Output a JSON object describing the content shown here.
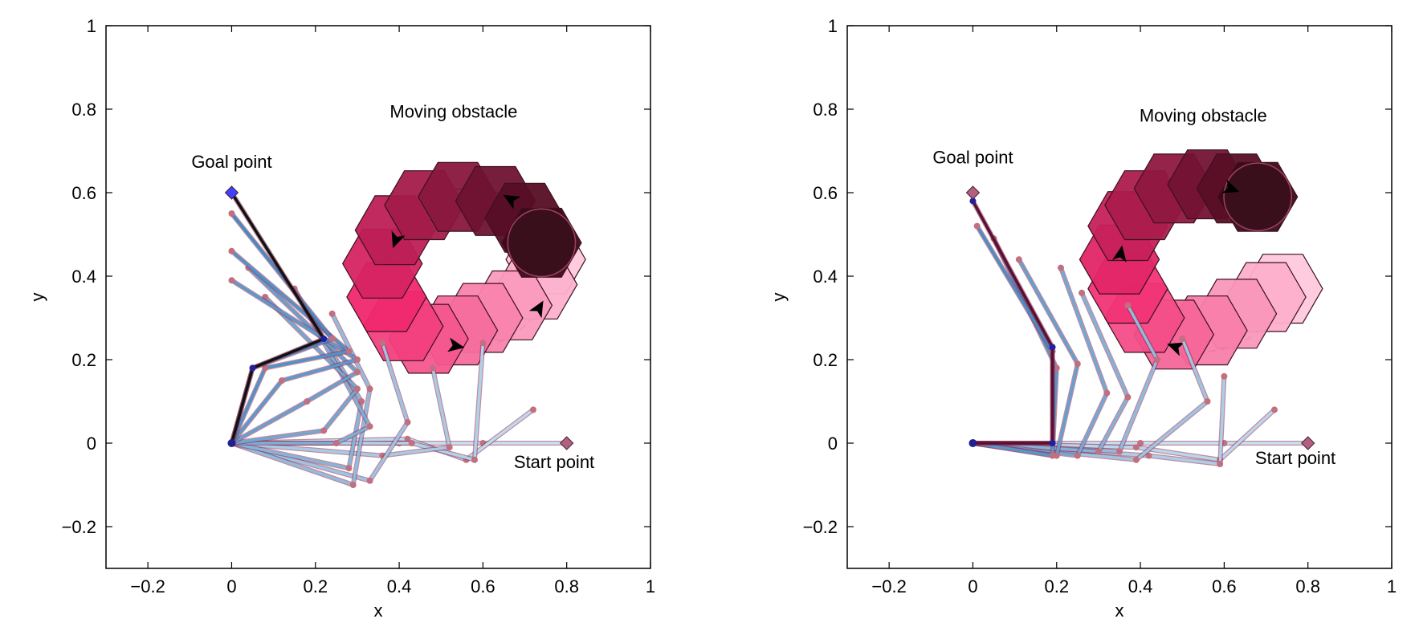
{
  "chart_data": [
    {
      "type": "scatter",
      "title": "",
      "xlabel": "x",
      "ylabel": "y",
      "xlim": [
        -0.3,
        1.0
      ],
      "ylim": [
        -0.3,
        1.0
      ],
      "xticks": [
        -0.2,
        0,
        0.2,
        0.4,
        0.6,
        0.8,
        1
      ],
      "xtick_labels": [
        "−0.2",
        "0",
        "0.2",
        "0.4",
        "0.6",
        "0.8",
        "1"
      ],
      "yticks": [
        -0.2,
        0,
        0.2,
        0.4,
        0.6,
        0.8,
        1
      ],
      "ytick_labels": [
        "−0.2",
        "0",
        "0.2",
        "0.4",
        "0.6",
        "0.8",
        "1"
      ],
      "grid": false,
      "annotations": [
        {
          "text": "Moving obstacle",
          "x": 0.53,
          "y": 0.78
        },
        {
          "text": "Goal point",
          "x": 0.0,
          "y": 0.66
        },
        {
          "text": "Start point",
          "x": 0.77,
          "y": -0.06
        }
      ],
      "goal_point": [
        0.0,
        0.6
      ],
      "start_point": [
        0.8,
        0.0
      ],
      "obstacle_path": {
        "center": [
          0.57,
          0.42
        ],
        "radius": 0.19,
        "closed": true
      },
      "obstacle_positions": [
        [
          0.75,
          0.44
        ],
        [
          0.73,
          0.38
        ],
        [
          0.67,
          0.33
        ],
        [
          0.6,
          0.3
        ],
        [
          0.54,
          0.27
        ],
        [
          0.47,
          0.25
        ],
        [
          0.41,
          0.28
        ],
        [
          0.37,
          0.35
        ],
        [
          0.36,
          0.43
        ],
        [
          0.39,
          0.51
        ],
        [
          0.46,
          0.57
        ],
        [
          0.54,
          0.59
        ],
        [
          0.63,
          0.58
        ],
        [
          0.7,
          0.54
        ],
        [
          0.74,
          0.48
        ]
      ],
      "arm_configurations": [
        {
          "base": [
            0,
            0
          ],
          "joint1": [
            0.4,
            0.0
          ],
          "joint2": [
            0.6,
            0.0
          ],
          "end": [
            0.8,
            0.0
          ]
        },
        {
          "base": [
            0,
            0
          ],
          "joint1": [
            0.42,
            0.01
          ],
          "joint2": [
            0.56,
            -0.04
          ],
          "end": [
            0.72,
            0.08
          ]
        },
        {
          "base": [
            0,
            0
          ],
          "joint1": [
            0.43,
            0.0
          ],
          "joint2": [
            0.58,
            -0.04
          ],
          "end": [
            0.6,
            0.24
          ]
        },
        {
          "base": [
            0,
            0
          ],
          "joint1": [
            0.36,
            -0.03
          ],
          "joint2": [
            0.52,
            -0.01
          ],
          "end": [
            0.48,
            0.18
          ]
        },
        {
          "base": [
            0,
            0
          ],
          "joint1": [
            0.33,
            -0.09
          ],
          "joint2": [
            0.42,
            0.05
          ],
          "end": [
            0.36,
            0.24
          ]
        },
        {
          "base": [
            0,
            0
          ],
          "joint1": [
            0.29,
            -0.1
          ],
          "joint2": [
            0.33,
            0.13
          ],
          "end": [
            0.24,
            0.31
          ]
        },
        {
          "base": [
            0,
            0
          ],
          "joint1": [
            0.28,
            -0.06
          ],
          "joint2": [
            0.31,
            0.1
          ],
          "end": [
            0.19,
            0.3
          ]
        },
        {
          "base": [
            0,
            0
          ],
          "joint1": [
            0.25,
            0.0
          ],
          "joint2": [
            0.33,
            0.04
          ],
          "end": [
            0.15,
            0.37
          ]
        },
        {
          "base": [
            0,
            0
          ],
          "joint1": [
            0.22,
            0.03
          ],
          "joint2": [
            0.3,
            0.13
          ],
          "end": [
            0.08,
            0.35
          ]
        },
        {
          "base": [
            0,
            0
          ],
          "joint1": [
            0.18,
            0.1
          ],
          "joint2": [
            0.3,
            0.17
          ],
          "end": [
            0.04,
            0.42
          ]
        },
        {
          "base": [
            0,
            0
          ],
          "joint1": [
            0.12,
            0.15
          ],
          "joint2": [
            0.3,
            0.2
          ],
          "end": [
            0.0,
            0.39
          ]
        },
        {
          "base": [
            0,
            0
          ],
          "joint1": [
            0.08,
            0.18
          ],
          "joint2": [
            0.28,
            0.22
          ],
          "end": [
            0.0,
            0.46
          ]
        },
        {
          "base": [
            0,
            0
          ],
          "joint1": [
            0.05,
            0.18
          ],
          "joint2": [
            0.24,
            0.25
          ],
          "end": [
            0.0,
            0.55
          ]
        },
        {
          "base": [
            0,
            0
          ],
          "joint1": [
            0.05,
            0.18
          ],
          "joint2": [
            0.22,
            0.25
          ],
          "end": [
            0.0,
            0.6
          ]
        }
      ]
    },
    {
      "type": "scatter",
      "title": "",
      "xlabel": "x",
      "ylabel": "y",
      "xlim": [
        -0.3,
        1.0
      ],
      "ylim": [
        -0.3,
        1.0
      ],
      "xticks": [
        -0.2,
        0,
        0.2,
        0.4,
        0.6,
        0.8,
        1
      ],
      "xtick_labels": [
        "−0.2",
        "0",
        "0.2",
        "0.4",
        "0.6",
        "0.8",
        "1"
      ],
      "yticks": [
        -0.2,
        0,
        0.2,
        0.4,
        0.6,
        0.8,
        1
      ],
      "ytick_labels": [
        "−0.2",
        "0",
        "0.2",
        "0.4",
        "0.6",
        "0.8",
        "1"
      ],
      "grid": false,
      "annotations": [
        {
          "text": "Moving obstacle",
          "x": 0.55,
          "y": 0.77
        },
        {
          "text": "Goal point",
          "x": 0.0,
          "y": 0.67
        },
        {
          "text": "Start point",
          "x": 0.77,
          "y": -0.05
        }
      ],
      "goal_point": [
        0.0,
        0.6
      ],
      "start_point": [
        0.8,
        0.0
      ],
      "obstacle_path": {
        "center": [
          0.55,
          0.42
        ],
        "radius": 0.2,
        "closed": false
      },
      "obstacle_positions": [
        [
          0.74,
          0.37
        ],
        [
          0.7,
          0.35
        ],
        [
          0.63,
          0.31
        ],
        [
          0.56,
          0.27
        ],
        [
          0.48,
          0.26
        ],
        [
          0.41,
          0.3
        ],
        [
          0.37,
          0.37
        ],
        [
          0.35,
          0.44
        ],
        [
          0.37,
          0.52
        ],
        [
          0.41,
          0.57
        ],
        [
          0.48,
          0.61
        ],
        [
          0.56,
          0.62
        ],
        [
          0.63,
          0.61
        ],
        [
          0.68,
          0.59
        ]
      ],
      "arm_configurations": [
        {
          "base": [
            0,
            0
          ],
          "joint1": [
            0.4,
            0.0
          ],
          "joint2": [
            0.6,
            0.0
          ],
          "end": [
            0.8,
            0.0
          ]
        },
        {
          "base": [
            0,
            0
          ],
          "joint1": [
            0.39,
            -0.01
          ],
          "joint2": [
            0.59,
            -0.04
          ],
          "end": [
            0.72,
            0.08
          ]
        },
        {
          "base": [
            0,
            0
          ],
          "joint1": [
            0.42,
            -0.03
          ],
          "joint2": [
            0.59,
            -0.05
          ],
          "end": [
            0.6,
            0.16
          ]
        },
        {
          "base": [
            0,
            0
          ],
          "joint1": [
            0.39,
            -0.04
          ],
          "joint2": [
            0.56,
            0.1
          ],
          "end": [
            0.5,
            0.25
          ]
        },
        {
          "base": [
            0,
            0
          ],
          "joint1": [
            0.35,
            -0.02
          ],
          "joint2": [
            0.44,
            0.2
          ],
          "end": [
            0.37,
            0.33
          ]
        },
        {
          "base": [
            0,
            0
          ],
          "joint1": [
            0.3,
            -0.02
          ],
          "joint2": [
            0.37,
            0.11
          ],
          "end": [
            0.26,
            0.36
          ]
        },
        {
          "base": [
            0,
            0
          ],
          "joint1": [
            0.25,
            -0.03
          ],
          "joint2": [
            0.32,
            0.12
          ],
          "end": [
            0.21,
            0.42
          ]
        },
        {
          "base": [
            0,
            0
          ],
          "joint1": [
            0.2,
            -0.03
          ],
          "joint2": [
            0.25,
            0.19
          ],
          "end": [
            0.11,
            0.44
          ]
        },
        {
          "base": [
            0,
            0
          ],
          "joint1": [
            0.19,
            -0.03
          ],
          "joint2": [
            0.2,
            0.18
          ],
          "end": [
            0.05,
            0.49
          ]
        },
        {
          "base": [
            0,
            0
          ],
          "joint1": [
            0.19,
            0.0
          ],
          "joint2": [
            0.19,
            0.22
          ],
          "end": [
            0.01,
            0.52
          ]
        },
        {
          "base": [
            0,
            0
          ],
          "joint1": [
            0.19,
            0.0
          ],
          "joint2": [
            0.19,
            0.23
          ],
          "end": [
            0.0,
            0.58
          ]
        }
      ]
    }
  ]
}
